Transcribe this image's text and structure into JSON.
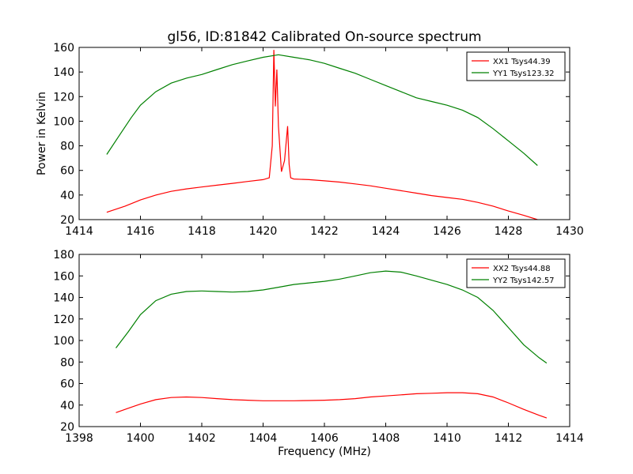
{
  "chart_data": [
    {
      "type": "line",
      "title": "gl56, ID:81842 Calibrated On-source spectrum",
      "xlabel": "",
      "ylabel": "Power in Kelvin",
      "xlim": [
        1414,
        1430
      ],
      "ylim": [
        20,
        160
      ],
      "xticks": [
        "1414",
        "1416",
        "1418",
        "1420",
        "1422",
        "1424",
        "1426",
        "1428",
        "1430"
      ],
      "yticks": [
        "20",
        "40",
        "60",
        "80",
        "100",
        "120",
        "140",
        "160"
      ],
      "grid": false,
      "legend_position": "top-right",
      "series": [
        {
          "name": "XX1 Tsys44.39",
          "color": "#ff0000",
          "x": [
            1414.9,
            1415.5,
            1416.0,
            1416.5,
            1417.0,
            1417.5,
            1418.0,
            1418.5,
            1419.0,
            1419.5,
            1420.0,
            1420.2,
            1420.3,
            1420.35,
            1420.4,
            1420.45,
            1420.5,
            1420.6,
            1420.7,
            1420.8,
            1420.85,
            1420.9,
            1421.0,
            1421.5,
            1422.0,
            1422.5,
            1423.0,
            1423.5,
            1424.0,
            1424.5,
            1425.0,
            1425.5,
            1426.0,
            1426.5,
            1427.0,
            1427.5,
            1428.0,
            1428.5,
            1428.95
          ],
          "values": [
            26,
            31,
            36,
            40,
            43,
            45,
            46.5,
            48,
            49.5,
            51,
            52.5,
            54,
            80,
            158,
            112,
            142,
            96,
            59,
            68,
            96,
            65,
            54,
            53,
            52.5,
            51.5,
            50.5,
            49,
            47.5,
            45.5,
            43.5,
            41.5,
            39.5,
            38,
            36.5,
            34,
            31,
            27,
            23.5,
            20
          ]
        },
        {
          "name": "YY1 Tsys123.32",
          "color": "#008000",
          "x": [
            1414.9,
            1415.3,
            1415.7,
            1416.0,
            1416.5,
            1417.0,
            1417.5,
            1418.0,
            1418.5,
            1419.0,
            1419.5,
            1420.0,
            1420.5,
            1421.0,
            1421.5,
            1422.0,
            1422.5,
            1423.0,
            1423.5,
            1424.0,
            1424.5,
            1425.0,
            1425.5,
            1426.0,
            1426.5,
            1427.0,
            1427.5,
            1428.0,
            1428.5,
            1428.95
          ],
          "values": [
            73,
            88,
            103,
            113,
            124,
            131,
            135,
            138,
            142,
            146,
            149,
            152,
            154,
            152,
            150,
            147,
            143,
            139,
            134,
            129,
            124,
            119,
            116,
            113,
            109,
            103,
            94,
            84,
            74,
            64
          ]
        }
      ]
    },
    {
      "type": "line",
      "title": "",
      "xlabel": "Frequency (MHz)",
      "ylabel": "",
      "xlim": [
        1398,
        1414
      ],
      "ylim": [
        20,
        180
      ],
      "xticks": [
        "1398",
        "1400",
        "1402",
        "1404",
        "1406",
        "1408",
        "1410",
        "1412",
        "1414"
      ],
      "yticks": [
        "20",
        "40",
        "60",
        "80",
        "100",
        "120",
        "140",
        "160",
        "180"
      ],
      "grid": false,
      "legend_position": "top-right",
      "series": [
        {
          "name": "XX2 Tsys44.88",
          "color": "#ff0000",
          "x": [
            1399.2,
            1399.6,
            1400.0,
            1400.5,
            1401.0,
            1401.5,
            1402.0,
            1402.5,
            1403.0,
            1403.5,
            1404.0,
            1404.5,
            1405.0,
            1405.5,
            1406.0,
            1406.5,
            1407.0,
            1407.5,
            1408.0,
            1408.5,
            1409.0,
            1409.5,
            1410.0,
            1410.5,
            1411.0,
            1411.5,
            1412.0,
            1412.5,
            1413.0,
            1413.25
          ],
          "values": [
            33,
            37,
            41,
            45,
            47,
            47.5,
            47,
            46,
            45,
            44.5,
            44,
            44,
            44,
            44.2,
            44.5,
            45,
            46,
            47.5,
            48.5,
            49.5,
            50.5,
            51,
            51.5,
            51.5,
            50.5,
            47.5,
            42,
            36,
            30.5,
            28
          ]
        },
        {
          "name": "YY2 Tsys142.57",
          "color": "#008000",
          "x": [
            1399.2,
            1399.6,
            1400.0,
            1400.5,
            1401.0,
            1401.5,
            1402.0,
            1402.5,
            1403.0,
            1403.5,
            1404.0,
            1404.5,
            1405.0,
            1405.5,
            1406.0,
            1406.5,
            1407.0,
            1407.5,
            1408.0,
            1408.5,
            1409.0,
            1409.5,
            1410.0,
            1410.5,
            1411.0,
            1411.5,
            1412.0,
            1412.5,
            1413.0,
            1413.25
          ],
          "values": [
            93,
            108,
            124,
            137,
            143,
            145.5,
            146,
            145.5,
            145,
            145.5,
            147,
            149.5,
            152,
            153.5,
            155,
            157,
            160,
            163,
            164.5,
            163.5,
            160,
            156,
            152,
            147,
            140,
            128,
            112,
            96,
            84,
            79
          ]
        }
      ]
    }
  ]
}
